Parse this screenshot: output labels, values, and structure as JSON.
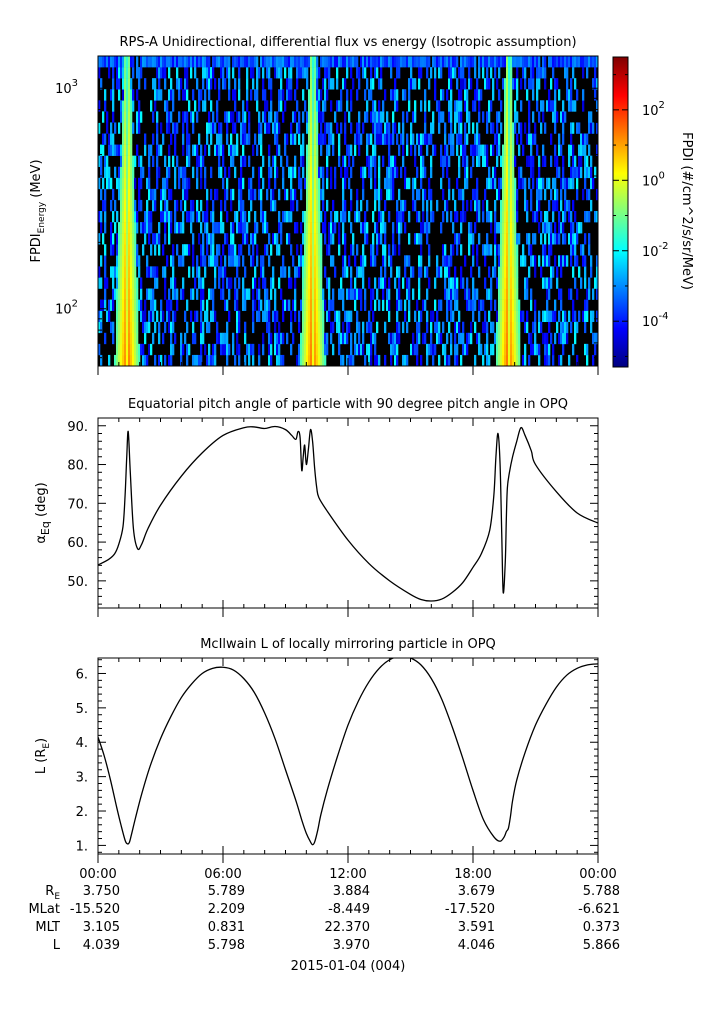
{
  "panels": {
    "spectrogram": {
      "title": "RPS-A Unidirectional, differential flux vs energy (Isotropic assumption)",
      "ylabel_main": "FPDI",
      "ylabel_sub": "Energy",
      "ylabel_unit": " (MeV)",
      "ytick_labels": [
        {
          "base": "10",
          "exp": "3",
          "value": 1000
        },
        {
          "base": "10",
          "exp": "2",
          "value": 100
        }
      ],
      "colorbar": {
        "label": "FPDI (#/cm^2/s/sr/MeV)",
        "tick_labels": [
          {
            "base": "10",
            "exp": "2",
            "value": 2
          },
          {
            "base": "10",
            "exp": "0",
            "value": 0
          },
          {
            "base": "10",
            "exp": "-2",
            "value": -2
          },
          {
            "base": "10",
            "exp": "-4",
            "value": -4
          }
        ],
        "log_range": [
          -5.3,
          3.5
        ],
        "colors": [
          "#00007f",
          "#0000ff",
          "#007fff",
          "#00ffff",
          "#7fff7f",
          "#ffff00",
          "#ff7f00",
          "#ff0000",
          "#7f0000"
        ]
      }
    },
    "pitch": {
      "title": "Equatorial pitch angle of particle with 90 degree pitch angle in OPQ",
      "ylabel_main": "α",
      "ylabel_sub": "Eq",
      "ylabel_unit": " (deg)",
      "ytick_labels": [
        "90.",
        "80.",
        "70.",
        "60.",
        "50."
      ]
    },
    "lshell": {
      "title": "McIlwain L of locally mirroring particle in OPQ",
      "ylabel_main": "L (R",
      "ylabel_sub": "E",
      "ylabel_unit": ")",
      "ytick_labels": [
        "6.",
        "5.",
        "4.",
        "3.",
        "2.",
        "1."
      ]
    }
  },
  "time_axis": {
    "tick_labels": [
      "00:00",
      "06:00",
      "12:00",
      "18:00",
      "00:00"
    ],
    "date_label": "2015-01-04 (004)"
  },
  "ephemeris": [
    {
      "label_main": "R",
      "label_sub": "E",
      "values": [
        "3.750",
        "5.789",
        "3.884",
        "3.679",
        "5.788"
      ]
    },
    {
      "label_main": "MLat",
      "label_sub": "",
      "values": [
        "-15.520",
        "2.209",
        "-8.449",
        "-17.520",
        "-6.621"
      ]
    },
    {
      "label_main": "MLT",
      "label_sub": "",
      "values": [
        "3.105",
        "0.831",
        "22.370",
        "3.591",
        "0.373"
      ]
    },
    {
      "label_main": "L",
      "label_sub": "",
      "values": [
        "4.039",
        "5.798",
        "3.970",
        "4.046",
        "5.866"
      ]
    }
  ],
  "chart_data": [
    {
      "type": "heatmap",
      "title": "RPS-A Unidirectional, differential flux vs energy (Isotropic assumption)",
      "xlabel": "",
      "ylabel": "FPDI Energy (MeV)",
      "y_scale": "log",
      "ylim": [
        55,
        1400
      ],
      "xlim_hours": [
        0,
        24
      ],
      "colorbar_label": "FPDI (#/cm^2/s/sr/MeV)",
      "colorbar_log_range": [
        -5.3,
        3.5
      ],
      "bright_band_hours": [
        1.4,
        10.3,
        19.7
      ],
      "note": "high flux (green to red, ~10^0) near perigee passes; sparse 10^-3 to 10^-5 counts elsewhere"
    },
    {
      "type": "line",
      "title": "Equatorial pitch angle of particle with 90 degree pitch angle in OPQ",
      "ylabel": "αEq (deg)",
      "ylim": [
        43,
        92
      ],
      "xlim_hours": [
        0,
        24
      ],
      "x_hours": [
        0.0,
        0.5,
        0.8,
        1.0,
        1.2,
        1.3,
        1.38,
        1.45,
        1.55,
        1.7,
        1.9,
        2.1,
        2.4,
        3.0,
        4.0,
        5.0,
        6.0,
        7.0,
        7.5,
        8.0,
        8.5,
        9.0,
        9.3,
        9.5,
        9.6,
        9.7,
        9.78,
        9.85,
        9.92,
        10.0,
        10.1,
        10.2,
        10.3,
        10.4,
        10.5,
        10.6,
        11.0,
        12.0,
        13.0,
        14.0,
        15.0,
        15.5,
        16.0,
        16.5,
        17.0,
        17.5,
        18.0,
        18.4,
        18.8,
        19.0,
        19.1,
        19.2,
        19.3,
        19.38,
        19.45,
        19.55,
        19.6,
        19.65,
        19.75,
        19.9,
        20.1,
        20.3,
        20.5,
        20.8,
        21.0,
        22.0,
        23.0,
        24.0
      ],
      "values": [
        54.1,
        55.5,
        57.0,
        59.5,
        64.0,
        72.0,
        82.0,
        88.5,
        78.0,
        63.5,
        58.3,
        59.5,
        63.5,
        69.5,
        77.0,
        83.0,
        87.5,
        89.5,
        89.7,
        89.3,
        89.8,
        89.0,
        87.5,
        86.5,
        88.5,
        87.0,
        78.5,
        82.0,
        85.0,
        80.0,
        84.0,
        89.0,
        86.0,
        79.0,
        74.0,
        71.5,
        68.0,
        60.5,
        54.5,
        50.0,
        46.5,
        45.2,
        44.8,
        45.3,
        47.0,
        49.5,
        53.5,
        57.0,
        63.0,
        72.0,
        82.0,
        88.0,
        80.0,
        62.0,
        47.0,
        55.0,
        66.0,
        74.0,
        78.0,
        82.0,
        86.0,
        89.5,
        87.5,
        83.5,
        80.0,
        73.0,
        67.5,
        64.9
      ]
    },
    {
      "type": "line",
      "title": "McIlwain L of locally mirroring particle in OPQ",
      "ylabel": "L (RE)",
      "ylim": [
        0.75,
        6.45
      ],
      "xlim_hours": [
        0,
        24
      ],
      "x_hours": [
        0.0,
        0.3,
        0.6,
        0.9,
        1.1,
        1.3,
        1.4,
        1.5,
        1.6,
        1.8,
        2.1,
        2.5,
        3.0,
        3.5,
        4.0,
        4.5,
        5.0,
        5.5,
        6.0,
        6.5,
        7.0,
        7.5,
        8.0,
        8.5,
        9.0,
        9.5,
        9.8,
        10.0,
        10.2,
        10.3,
        10.4,
        10.55,
        10.7,
        11.0,
        11.5,
        12.0,
        12.5,
        13.0,
        13.5,
        14.0,
        14.5,
        15.0,
        15.5,
        16.0,
        16.5,
        17.0,
        17.5,
        18.0,
        18.5,
        19.0,
        19.3,
        19.5,
        19.6,
        19.7,
        19.8,
        19.9,
        20.1,
        20.5,
        21.0,
        21.5,
        22.0,
        22.5,
        23.0,
        23.5,
        24.0
      ],
      "values": [
        4.15,
        3.6,
        2.9,
        2.1,
        1.6,
        1.15,
        1.05,
        1.08,
        1.3,
        1.8,
        2.5,
        3.3,
        4.1,
        4.75,
        5.3,
        5.7,
        6.0,
        6.15,
        6.18,
        6.1,
        5.85,
        5.45,
        4.85,
        4.1,
        3.2,
        2.3,
        1.7,
        1.35,
        1.1,
        1.02,
        1.1,
        1.45,
        1.9,
        2.6,
        3.6,
        4.5,
        5.2,
        5.75,
        6.15,
        6.4,
        6.5,
        6.45,
        6.25,
        5.85,
        5.25,
        4.45,
        3.55,
        2.6,
        1.75,
        1.25,
        1.12,
        1.25,
        1.4,
        1.5,
        1.85,
        2.3,
        2.9,
        3.7,
        4.5,
        5.1,
        5.6,
        5.95,
        6.15,
        6.25,
        6.28
      ]
    }
  ]
}
